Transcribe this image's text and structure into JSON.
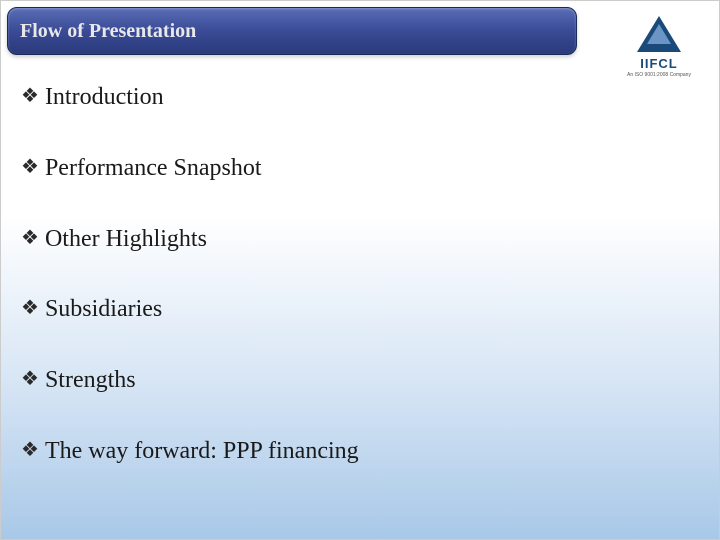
{
  "header": {
    "title": "Flow of Presentation"
  },
  "logo": {
    "name": "IIFCL",
    "subtext": "An ISO 9001:2008 Company"
  },
  "bullets": [
    {
      "text": "Introduction"
    },
    {
      "text": "Performance Snapshot"
    },
    {
      "text": "Other Highlights"
    },
    {
      "text": "Subsidiaries"
    },
    {
      "text": "Strengths"
    },
    {
      "text": "The way forward: PPP financing"
    }
  ],
  "styling": {
    "slide_width": 720,
    "slide_height": 540,
    "header_bg_gradient": [
      "#5a6db5",
      "#3a4a96",
      "#2a3a7a"
    ],
    "header_text_color": "#e8e8e8",
    "body_bg_gradient": [
      "#ffffff",
      "#d8e6f5",
      "#a8c8e8"
    ],
    "bullet_color": "#2a2a2a",
    "text_color": "#1a1a1a",
    "header_fontsize": 20,
    "bullet_fontsize": 24,
    "logo_primary_color": "#1a4a7a",
    "logo_secondary_color": "#6a95c5",
    "bullet_glyph": "❖"
  }
}
